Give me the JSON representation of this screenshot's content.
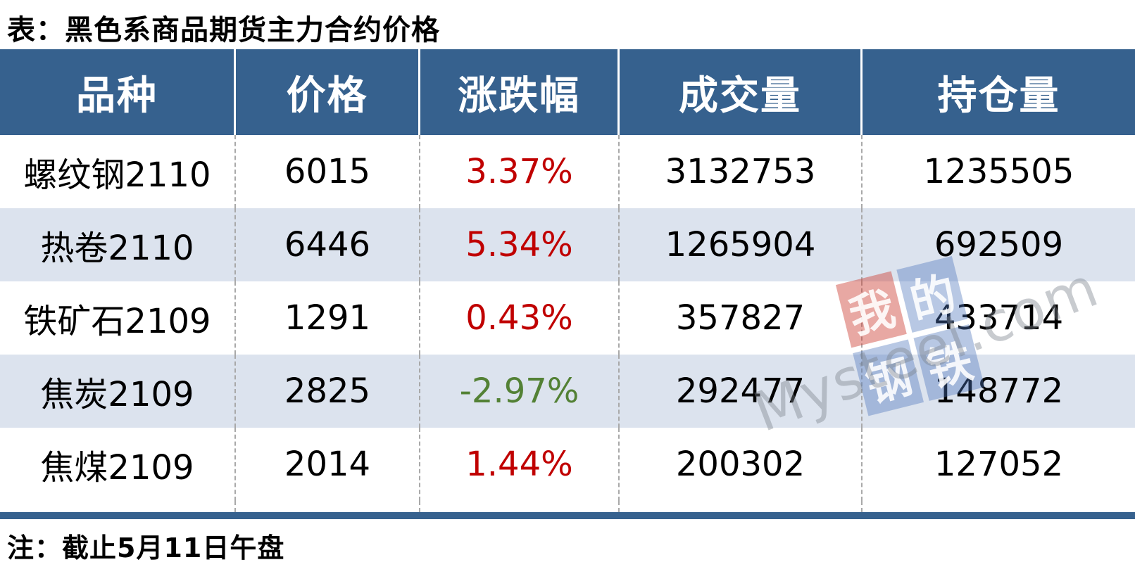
{
  "title": "表：黑色系商品期货主力合约价格",
  "note": "注：截止5月11日午盘",
  "colors": {
    "header_bg": "#36618E",
    "alt_row_bg": "#DCE3EE",
    "up_red": "#C00000",
    "down_green": "#538135"
  },
  "watermark": {
    "chars": [
      "我",
      "的",
      "钢",
      "铁"
    ],
    "text": "Mysteel.com"
  },
  "table": {
    "columns": [
      "品种",
      "价格",
      "涨跌幅",
      "成交量",
      "持仓量"
    ],
    "rows": [
      {
        "name": "螺纹钢2110",
        "price": "6015",
        "change": "3.37%",
        "direction": "up",
        "volume": "3132753",
        "open_interest": "1235505"
      },
      {
        "name": "热卷2110",
        "price": "6446",
        "change": "5.34%",
        "direction": "up",
        "volume": "1265904",
        "open_interest": "692509"
      },
      {
        "name": "铁矿石2109",
        "price": "1291",
        "change": "0.43%",
        "direction": "up",
        "volume": "357827",
        "open_interest": "433714"
      },
      {
        "name": "焦炭2109",
        "price": "2825",
        "change": "-2.97%",
        "direction": "down",
        "volume": "292477",
        "open_interest": "148772"
      },
      {
        "name": "焦煤2109",
        "price": "2014",
        "change": "1.44%",
        "direction": "up",
        "volume": "200302",
        "open_interest": "127052"
      }
    ]
  },
  "chart_data": {
    "type": "table",
    "title": "表：黑色系商品期货主力合约价格",
    "columns": [
      "品种",
      "价格",
      "涨跌幅",
      "成交量",
      "持仓量"
    ],
    "rows": [
      [
        "螺纹钢2110",
        6015,
        "3.37%",
        3132753,
        1235505
      ],
      [
        "热卷2110",
        6446,
        "5.34%",
        1265904,
        692509
      ],
      [
        "铁矿石2109",
        1291,
        "0.43%",
        357827,
        433714
      ],
      [
        "焦炭2109",
        2825,
        "-2.97%",
        292477,
        148772
      ],
      [
        "焦煤2109",
        2014,
        "1.44%",
        200302,
        127052
      ]
    ],
    "note": "注：截止5月11日午盘"
  }
}
